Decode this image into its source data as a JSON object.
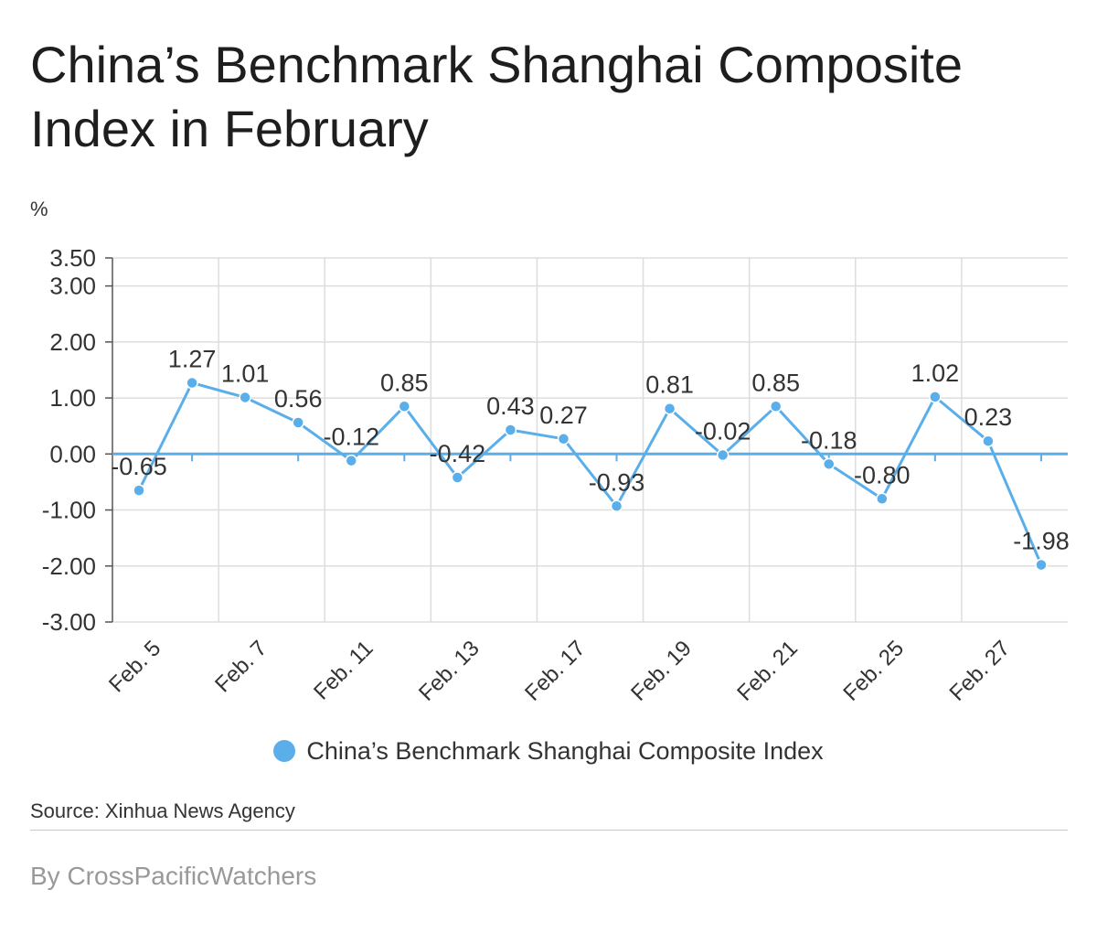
{
  "title": "China’s Benchmark Shanghai Composite Index in February",
  "unit_label": "%",
  "source": "Source: Xinhua News Agency",
  "credit": "By CrossPacificWatchers",
  "colors": {
    "series": "#5aaeea",
    "zero_line": "#5aaeea",
    "grid": "#dddddd",
    "axis": "#555555"
  },
  "chart_data": {
    "type": "line",
    "title": "China’s Benchmark Shanghai Composite Index in February",
    "ylabel": "%",
    "xlabel": "",
    "grid": true,
    "legend_position": "bottom",
    "ylim": [
      -3.0,
      3.5
    ],
    "y_ticks": [
      "-3.00",
      "-2.00",
      "-1.00",
      "0.00",
      "1.00",
      "2.00",
      "3.00",
      "3.50"
    ],
    "y_tick_values": [
      -3,
      -2,
      -1,
      0,
      1,
      2,
      3,
      3.5
    ],
    "x_tick_labels": [
      "Feb. 5",
      "Feb. 7",
      "Feb. 11",
      "Feb. 13",
      "Feb. 17",
      "Feb. 19",
      "Feb. 21",
      "Feb. 25",
      "Feb. 27"
    ],
    "series": [
      {
        "name": "China’s Benchmark Shanghai Composite Index",
        "values": [
          -0.65,
          1.27,
          1.01,
          0.56,
          -0.12,
          0.85,
          -0.42,
          0.43,
          0.27,
          -0.93,
          0.81,
          -0.02,
          0.85,
          -0.18,
          -0.8,
          1.02,
          0.23,
          -1.98
        ],
        "labels": [
          "-0.65",
          "1.27",
          "1.01",
          "0.56",
          "-0.12",
          "0.85",
          "-0.42",
          "0.43",
          "0.27",
          "-0.93",
          "0.81",
          "-0.02",
          "0.85",
          "-0.18",
          "-0.80",
          "1.02",
          "0.23",
          "-1.98"
        ]
      }
    ]
  }
}
